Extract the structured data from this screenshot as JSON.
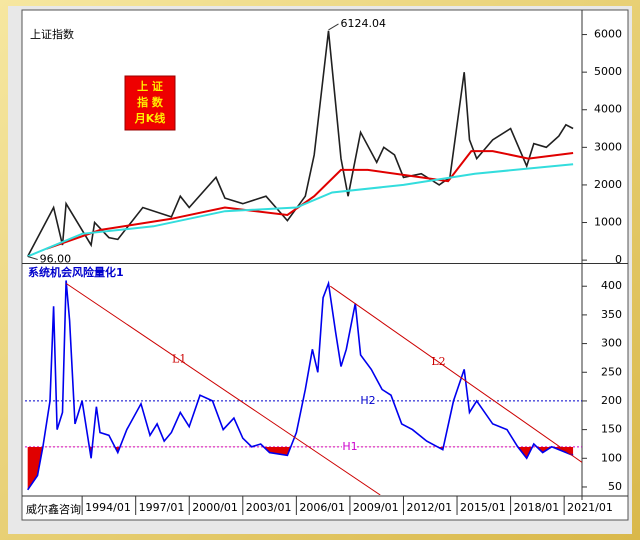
{
  "chart_data": [
    {
      "type": "line",
      "title": "上证指数",
      "badge": [
        "上 证",
        "指 数",
        "月K线"
      ],
      "xlim": [
        1990.8,
        2022.0
      ],
      "ylim": [
        -50,
        6600
      ],
      "yticks": [
        0,
        1000,
        2000,
        3000,
        4000,
        5000,
        6000
      ],
      "series": [
        {
          "color": "#202020",
          "x": [
            1990.95,
            1992.4,
            1992.9,
            1993.1,
            1994.5,
            1994.7,
            1995.5,
            1996.0,
            1997.4,
            1999.0,
            1999.5,
            2000.0,
            2001.5,
            2002.0,
            2003.0,
            2004.3,
            2005.5,
            2006.5,
            2007.0,
            2007.8,
            2008.5,
            2008.9,
            2009.6,
            2010.5,
            2010.9,
            2011.5,
            2012.0,
            2013.0,
            2014.0,
            2014.6,
            2015.4,
            2015.7,
            2016.1,
            2017.0,
            2018.0,
            2018.9,
            2019.3,
            2020.0,
            2020.7,
            2021.1,
            2021.5
          ],
          "values": [
            100,
            1400,
            400,
            1500,
            400,
            1000,
            600,
            550,
            1400,
            1150,
            1700,
            1400,
            2200,
            1650,
            1500,
            1700,
            1050,
            1700,
            2800,
            6100,
            2700,
            1700,
            3400,
            2600,
            3000,
            2800,
            2200,
            2300,
            2000,
            2200,
            5000,
            3200,
            2700,
            3200,
            3500,
            2500,
            3100,
            3000,
            3300,
            3600,
            3500
          ]
        },
        {
          "color": "#e00000",
          "x": [
            1992.0,
            1995.0,
            1999.0,
            2002.0,
            2005.5,
            2007.0,
            2008.5,
            2010.0,
            2013.0,
            2014.5,
            2015.8,
            2017.0,
            2019.0,
            2021.5
          ],
          "values": [
            300,
            800,
            1100,
            1400,
            1200,
            1700,
            2400,
            2400,
            2200,
            2100,
            2900,
            2900,
            2700,
            2850
          ]
        },
        {
          "color": "#33dddd",
          "x": [
            1990.95,
            1994.0,
            1998.0,
            2002.0,
            2006.0,
            2008.0,
            2012.0,
            2016.0,
            2021.5
          ],
          "values": [
            100,
            700,
            900,
            1300,
            1400,
            1800,
            2000,
            2300,
            2550
          ]
        }
      ],
      "annotations": [
        {
          "x": 2007.8,
          "value": 6124.04,
          "label": "6124.04"
        },
        {
          "x": 1990.95,
          "value": 96,
          "label": "96.00"
        }
      ]
    },
    {
      "type": "line",
      "title": "系统机会风险量化1",
      "source": "威尔鑫咨询",
      "xlim": [
        1990.8,
        2022.0
      ],
      "ylim": [
        36,
        437
      ],
      "yticks": [
        50,
        100,
        150,
        200,
        250,
        300,
        350,
        400
      ],
      "xticks": [
        {
          "value": 1994,
          "label": "1994/01"
        },
        {
          "value": 1997,
          "label": "1997/01"
        },
        {
          "value": 2000,
          "label": "2000/01"
        },
        {
          "value": 2003,
          "label": "2003/01"
        },
        {
          "value": 2006,
          "label": "2006/01"
        },
        {
          "value": 2009,
          "label": "2009/01"
        },
        {
          "value": 2012,
          "label": "2012/01"
        },
        {
          "value": 2015,
          "label": "2015/01"
        },
        {
          "value": 2018,
          "label": "2018/01"
        },
        {
          "value": 2021,
          "label": "2021/01"
        }
      ],
      "series": [
        {
          "color": "#0000ee",
          "below_fill": "#e00000",
          "x": [
            1990.95,
            1991.5,
            1991.8,
            1992.2,
            1992.4,
            1992.6,
            1992.9,
            1993.1,
            1993.3,
            1993.6,
            1994.0,
            1994.5,
            1994.8,
            1995.0,
            1995.5,
            1996.0,
            1996.5,
            1997.3,
            1997.8,
            1998.2,
            1998.6,
            1999.0,
            1999.5,
            2000.0,
            2000.6,
            2001.3,
            2001.9,
            2002.5,
            2003.0,
            2003.5,
            2004.0,
            2004.5,
            2005.5,
            2006.0,
            2006.5,
            2006.9,
            2007.2,
            2007.5,
            2007.8,
            2008.2,
            2008.5,
            2008.8,
            2009.3,
            2009.6,
            2010.2,
            2010.8,
            2011.3,
            2011.9,
            2012.5,
            2013.3,
            2014.2,
            2014.8,
            2015.4,
            2015.7,
            2016.1,
            2017.0,
            2017.8,
            2018.4,
            2018.9,
            2019.3,
            2019.8,
            2020.3,
            2021.5
          ],
          "values": [
            45,
            70,
            120,
            200,
            365,
            150,
            180,
            410,
            340,
            160,
            200,
            100,
            190,
            145,
            140,
            110,
            150,
            195,
            140,
            160,
            130,
            145,
            180,
            155,
            210,
            200,
            150,
            170,
            135,
            120,
            125,
            110,
            105,
            145,
            220,
            290,
            250,
            380,
            405,
            320,
            260,
            290,
            370,
            280,
            255,
            220,
            210,
            160,
            150,
            130,
            115,
            200,
            255,
            180,
            200,
            160,
            150,
            120,
            100,
            125,
            110,
            120,
            105
          ]
        }
      ],
      "trend_lines": [
        {
          "label": "L1",
          "color": "#cc0000",
          "x": [
            1993.1,
            2010.7
          ],
          "y": [
            405,
            36
          ]
        },
        {
          "label": "L2",
          "color": "#cc0000",
          "x": [
            2007.9,
            2022.0
          ],
          "y": [
            400,
            93
          ]
        }
      ],
      "levels": [
        {
          "label": "H2",
          "value": 200,
          "color": "#0000cc"
        },
        {
          "label": "H1",
          "value": 120,
          "color": "#cc00cc"
        }
      ]
    }
  ]
}
